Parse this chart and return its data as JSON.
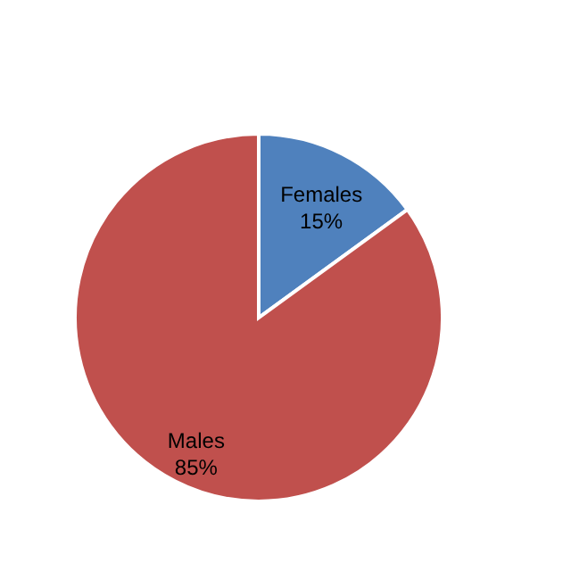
{
  "chart_data": {
    "type": "pie",
    "categories": [
      "Females",
      "Males"
    ],
    "values": [
      15,
      85
    ],
    "colors": [
      "#4f81bd",
      "#c0504d"
    ],
    "value_labels": [
      "15%",
      "85%"
    ]
  }
}
